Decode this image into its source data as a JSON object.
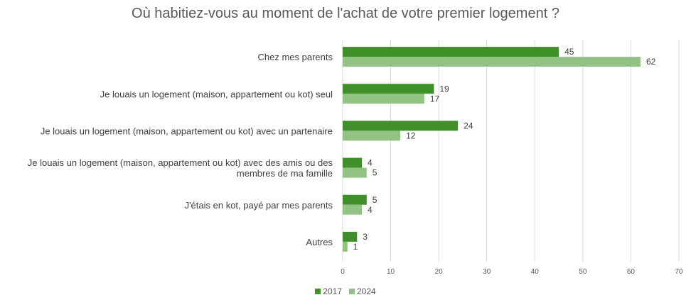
{
  "chart_data": {
    "type": "bar",
    "orientation": "horizontal",
    "title": "Où habitiez-vous au moment de l'achat de votre premier logement ?",
    "categories": [
      [
        "Chez mes parents"
      ],
      [
        "Je louais un logement (maison, appartement ou kot) seul"
      ],
      [
        "Je louais un logement (maison, appartement ou kot) avec un partenaire"
      ],
      [
        "Je louais un logement (maison, appartement ou kot) avec des amis ou des",
        "membres de ma famille"
      ],
      [
        "J'étais en kot, payé par mes parents"
      ],
      [
        "Autres"
      ]
    ],
    "series": [
      {
        "name": "2017",
        "color": "#3f8f2a",
        "values": [
          45,
          19,
          24,
          4,
          5,
          3
        ]
      },
      {
        "name": "2024",
        "color": "#93c384",
        "values": [
          62,
          17,
          12,
          5,
          4,
          1
        ]
      }
    ],
    "xlim": [
      0,
      70
    ],
    "xticks": [
      0,
      10,
      20,
      30,
      40,
      50,
      60,
      70
    ],
    "grid": true,
    "legend": "bottom",
    "xlabel": "",
    "ylabel": ""
  }
}
